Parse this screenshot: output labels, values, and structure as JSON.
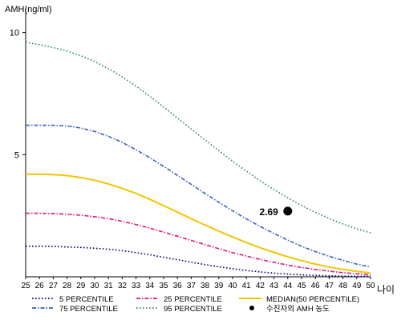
{
  "chart_data": {
    "type": "line",
    "ylabel": "AMH(ng/ml)",
    "xlabel": "나이",
    "xlim": [
      25,
      50
    ],
    "ylim": [
      0,
      11
    ],
    "x": [
      25,
      26,
      27,
      28,
      29,
      30,
      31,
      32,
      33,
      34,
      35,
      36,
      37,
      38,
      39,
      40,
      41,
      42,
      43,
      44,
      45,
      46,
      47,
      48,
      49,
      50
    ],
    "x_ticks": [
      "25",
      "26",
      "27",
      "28",
      "29",
      "30",
      "31",
      "32",
      "33",
      "34",
      "35",
      "36",
      "37",
      "38",
      "39",
      "40",
      "41",
      "42",
      "43",
      "44",
      "45",
      "46",
      "47",
      "48",
      "49",
      "50"
    ],
    "y_ticks": [
      {
        "value": 5,
        "label": "5"
      },
      {
        "value": 10,
        "label": "10"
      }
    ],
    "series": [
      {
        "name": "5 PERCENTILE",
        "color": "#000080",
        "style": "dotted",
        "values": [
          1.25,
          1.25,
          1.24,
          1.22,
          1.2,
          1.17,
          1.13,
          1.07,
          0.99,
          0.9,
          0.8,
          0.7,
          0.6,
          0.5,
          0.41,
          0.33,
          0.26,
          0.2,
          0.15,
          0.11,
          0.08,
          0.06,
          0.04,
          0.03,
          0.02,
          0.02
        ]
      },
      {
        "name": "25 PERCENTILE",
        "color": "#e0157f",
        "style": "dashdot",
        "values": [
          2.6,
          2.6,
          2.59,
          2.56,
          2.52,
          2.46,
          2.38,
          2.27,
          2.14,
          1.99,
          1.83,
          1.66,
          1.49,
          1.32,
          1.15,
          0.99,
          0.85,
          0.71,
          0.59,
          0.48,
          0.38,
          0.3,
          0.23,
          0.17,
          0.12,
          0.08
        ]
      },
      {
        "name": "MEDIAN(50 PERCENTILE)",
        "color": "#f2c500",
        "style": "solid",
        "values": [
          4.2,
          4.2,
          4.18,
          4.14,
          4.06,
          3.95,
          3.8,
          3.62,
          3.41,
          3.17,
          2.91,
          2.65,
          2.38,
          2.12,
          1.87,
          1.63,
          1.4,
          1.19,
          1.0,
          0.82,
          0.66,
          0.52,
          0.4,
          0.3,
          0.22,
          0.16
        ]
      },
      {
        "name": "75 PERCENTILE",
        "color": "#3a5fc8",
        "style": "dashdot",
        "values": [
          6.2,
          6.2,
          6.2,
          6.17,
          6.09,
          5.95,
          5.75,
          5.5,
          5.2,
          4.87,
          4.52,
          4.15,
          3.78,
          3.41,
          3.05,
          2.7,
          2.37,
          2.06,
          1.77,
          1.5,
          1.25,
          1.03,
          0.84,
          0.67,
          0.52,
          0.4
        ]
      },
      {
        "name": "95 PERCENTILE",
        "color": "#2e8b57",
        "style": "dotted",
        "values": [
          9.6,
          9.5,
          9.38,
          9.24,
          9.05,
          8.81,
          8.52,
          8.18,
          7.8,
          7.39,
          6.95,
          6.5,
          6.05,
          5.6,
          5.16,
          4.73,
          4.32,
          3.93,
          3.57,
          3.23,
          2.92,
          2.64,
          2.39,
          2.16,
          1.96,
          1.8
        ]
      }
    ],
    "patient_point": {
      "name": "수진자의 AMH 농도",
      "x": 44,
      "y": 2.69,
      "label": "2.69",
      "color": "#000000"
    },
    "legend": [
      {
        "name": "5 PERCENTILE",
        "color": "#000080",
        "style": "dotted"
      },
      {
        "name": "25 PERCENTILE",
        "color": "#e0157f",
        "style": "dashdot"
      },
      {
        "name": "MEDIAN(50 PERCENTILE)",
        "color": "#f2c500",
        "style": "solid"
      },
      {
        "name": "75 PERCENTILE",
        "color": "#3a5fc8",
        "style": "dashdot"
      },
      {
        "name": "95 PERCENTILE",
        "color": "#2e8b57",
        "style": "dotted"
      },
      {
        "name": "수진자의 AMH 농도",
        "color": "#000000",
        "style": "marker"
      }
    ],
    "legend_position": "bottom"
  }
}
